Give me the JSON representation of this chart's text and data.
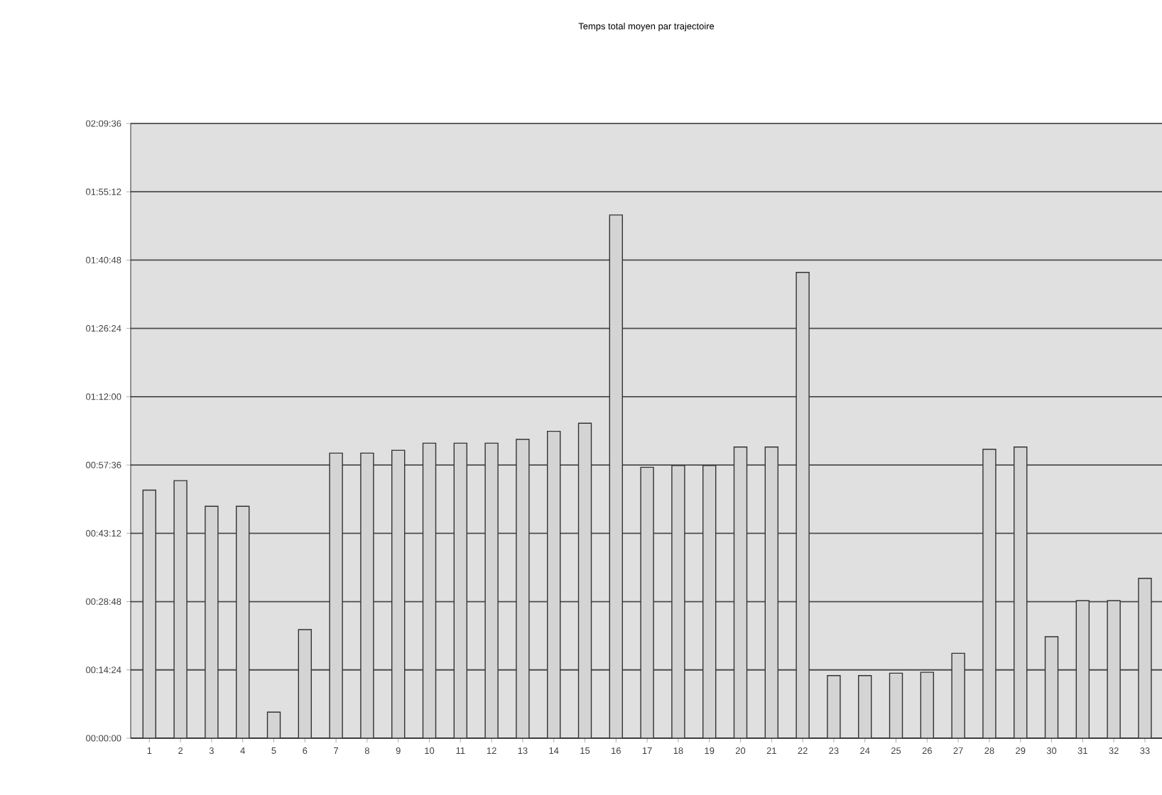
{
  "chart_data": {
    "type": "bar",
    "title": "Temps total moyen par trajectoire",
    "categories": [
      "1",
      "2",
      "3",
      "4",
      "5",
      "6",
      "7",
      "8",
      "9",
      "10",
      "11",
      "12",
      "13",
      "14",
      "15",
      "16",
      "17",
      "18",
      "19",
      "20",
      "21",
      "22",
      "23",
      "24",
      "25",
      "26",
      "27",
      "28",
      "29",
      "30",
      "31",
      "32",
      "33"
    ],
    "values": [
      52.3,
      54.3,
      48.9,
      48.9,
      5.5,
      22.9,
      60.1,
      60.1,
      60.7,
      62.2,
      62.2,
      62.2,
      63.0,
      64.7,
      66.4,
      110.3,
      57.1,
      57.5,
      57.5,
      61.4,
      61.4,
      98.2,
      13.2,
      13.2,
      13.7,
      13.9,
      17.9,
      60.9,
      61.4,
      21.4,
      29.0,
      29.0,
      33.7
    ],
    "color": "#d4d4d4",
    "ylim": [
      0,
      129.6
    ],
    "yticks": [
      {
        "value": 0,
        "label": "00:00:00"
      },
      {
        "value": 14.4,
        "label": "00:14:24"
      },
      {
        "value": 28.8,
        "label": "00:28:48"
      },
      {
        "value": 43.2,
        "label": "00:43:12"
      },
      {
        "value": 57.6,
        "label": "00:57:36"
      },
      {
        "value": 72,
        "label": "01:12:00"
      },
      {
        "value": 86.4,
        "label": "01:26:24"
      },
      {
        "value": 100.8,
        "label": "01:40:48"
      },
      {
        "value": 115.2,
        "label": "01:55:12"
      },
      {
        "value": 129.6,
        "label": "02:09:36"
      }
    ],
    "grid": "y"
  }
}
